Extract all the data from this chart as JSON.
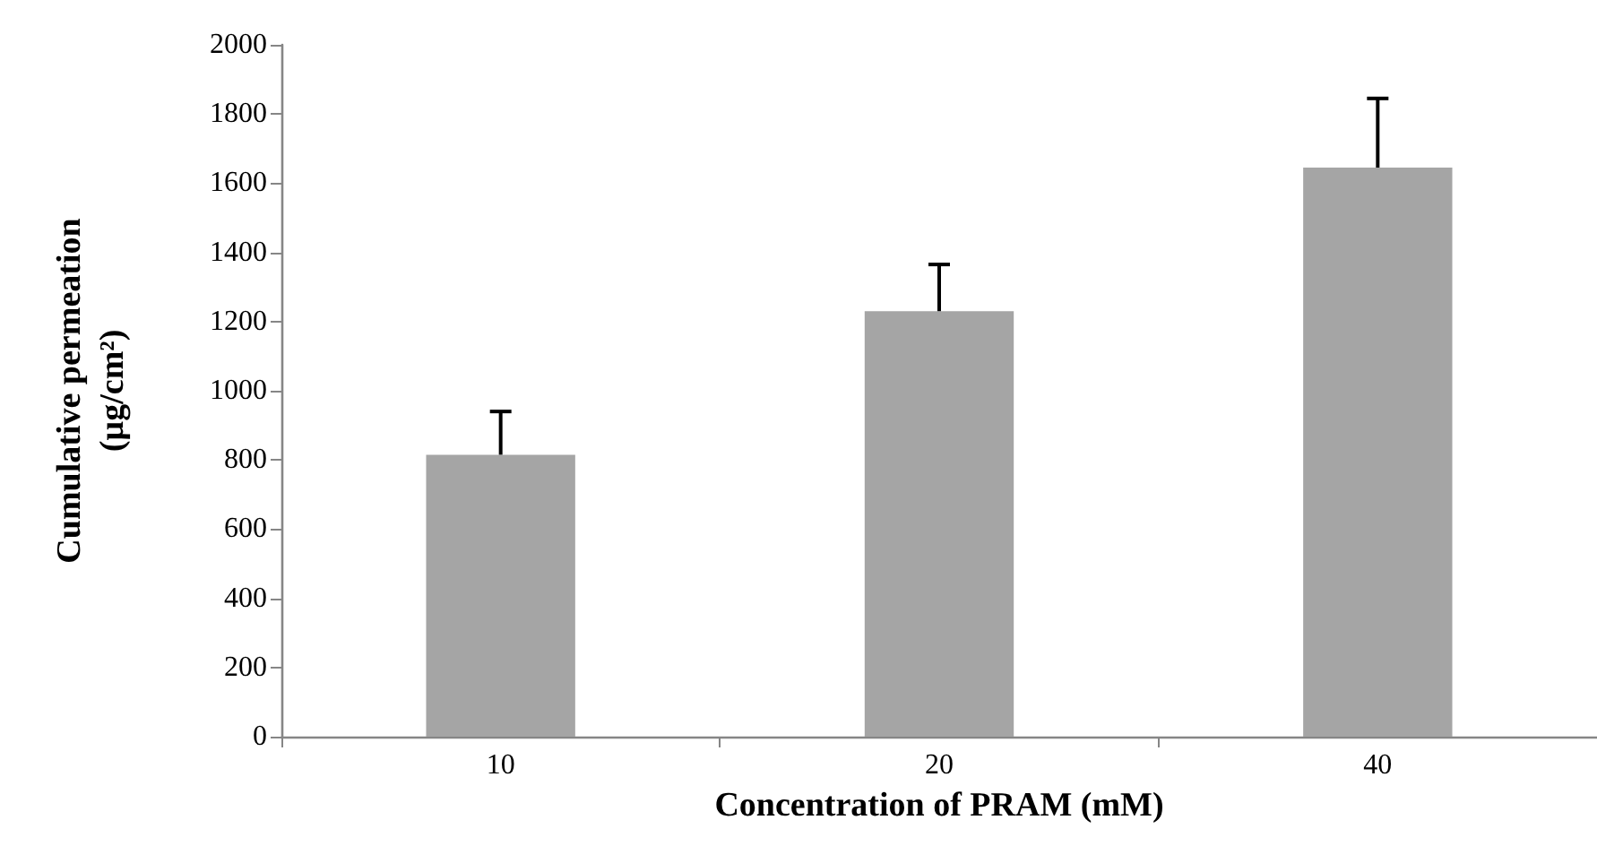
{
  "chart_data": {
    "type": "bar",
    "xlabel": "Concentration of PRAM (mM)",
    "ylabel": "Cumulative permeation\n(µg/cm²)",
    "categories": [
      "10",
      "20",
      "40"
    ],
    "values": [
      815,
      1230,
      1645
    ],
    "errors": [
      [
        815,
        940
      ],
      [
        1230,
        1365
      ],
      [
        1645,
        1845
      ]
    ],
    "color": "#a5a5a5",
    "ylim": [
      0,
      2000
    ],
    "yticks": [
      0,
      200,
      400,
      600,
      800,
      1000,
      1200,
      1400,
      1600,
      1800,
      2000
    ],
    "grid": false
  }
}
